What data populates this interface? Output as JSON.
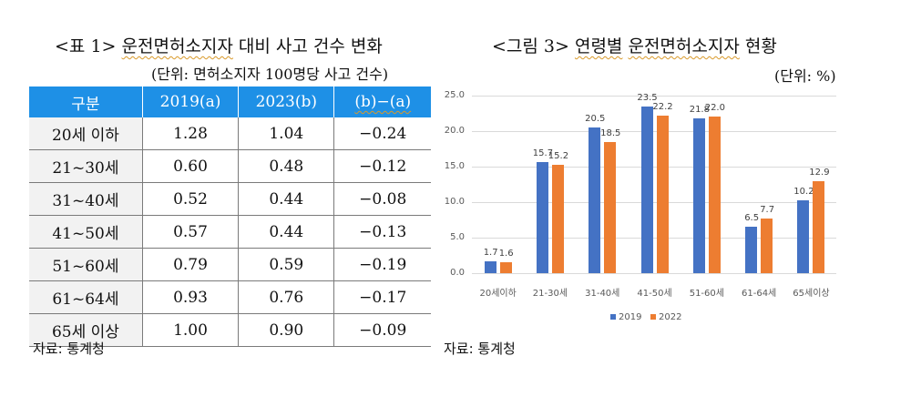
{
  "table": {
    "title_prefix": "<표 1> ",
    "title_underlined": "운전면허소지자",
    "title_suffix": " 대비 사고 건수 변화",
    "unit": "(단위: 면허소지자 100명당 사고 건수)",
    "headers": [
      "구분",
      "2019(a)",
      "2023(b)",
      "(b)−(a)"
    ],
    "rows": [
      {
        "label": "20세 이하",
        "a": "1.28",
        "b": "1.04",
        "diff": "−0.24"
      },
      {
        "label": "21~30세",
        "a": "0.60",
        "b": "0.48",
        "diff": "−0.12"
      },
      {
        "label": "31~40세",
        "a": "0.52",
        "b": "0.44",
        "diff": "−0.08"
      },
      {
        "label": "41~50세",
        "a": "0.57",
        "b": "0.44",
        "diff": "−0.13"
      },
      {
        "label": "51~60세",
        "a": "0.79",
        "b": "0.59",
        "diff": "−0.19"
      },
      {
        "label": "61~64세",
        "a": "0.93",
        "b": "0.76",
        "diff": "−0.17"
      },
      {
        "label": "65세 이상",
        "a": "1.00",
        "b": "0.90",
        "diff": "−0.09"
      }
    ],
    "source": "자료: 통계청"
  },
  "figure": {
    "title_prefix": "<그림 3> ",
    "title_underlined_1": "연령별",
    "title_underlined_2": "운전면허소지자",
    "title_suffix": " 현황",
    "unit": "(단위: %)",
    "source": "자료: 통계청"
  },
  "colors": {
    "header_blue": "#1e90e6",
    "series_2019": "#4472c4",
    "series_2022": "#ed7d31"
  },
  "chart_data": [
    {
      "type": "table",
      "title": "<표 1> 운전면허소지자 대비 사고 건수 변화",
      "unit": "면허소지자 100명당 사고 건수",
      "columns": [
        "구분",
        "2019(a)",
        "2023(b)",
        "(b)-(a)"
      ],
      "rows": [
        [
          "20세 이하",
          1.28,
          1.04,
          -0.24
        ],
        [
          "21~30세",
          0.6,
          0.48,
          -0.12
        ],
        [
          "31~40세",
          0.52,
          0.44,
          -0.08
        ],
        [
          "41~50세",
          0.57,
          0.44,
          -0.13
        ],
        [
          "51~60세",
          0.79,
          0.59,
          -0.19
        ],
        [
          "61~64세",
          0.93,
          0.76,
          -0.17
        ],
        [
          "65세 이상",
          1.0,
          0.9,
          -0.09
        ]
      ]
    },
    {
      "type": "bar",
      "title": "<그림 3> 연령별 운전면허소지자 현황",
      "unit": "%",
      "categories": [
        "20세이하",
        "21-30세",
        "31-40세",
        "41-50세",
        "51-60세",
        "61-64세",
        "65세이상"
      ],
      "series": [
        {
          "name": "2019",
          "values": [
            1.7,
            15.7,
            20.5,
            23.5,
            21.8,
            6.5,
            10.2
          ]
        },
        {
          "name": "2022",
          "values": [
            1.6,
            15.2,
            18.5,
            22.2,
            22.0,
            7.7,
            12.9
          ]
        }
      ],
      "yticks": [
        "0.0",
        "5.0",
        "10.0",
        "15.0",
        "20.0",
        "25.0"
      ],
      "ylim": [
        0,
        25
      ],
      "grid": true,
      "legend_position": "bottom"
    }
  ]
}
